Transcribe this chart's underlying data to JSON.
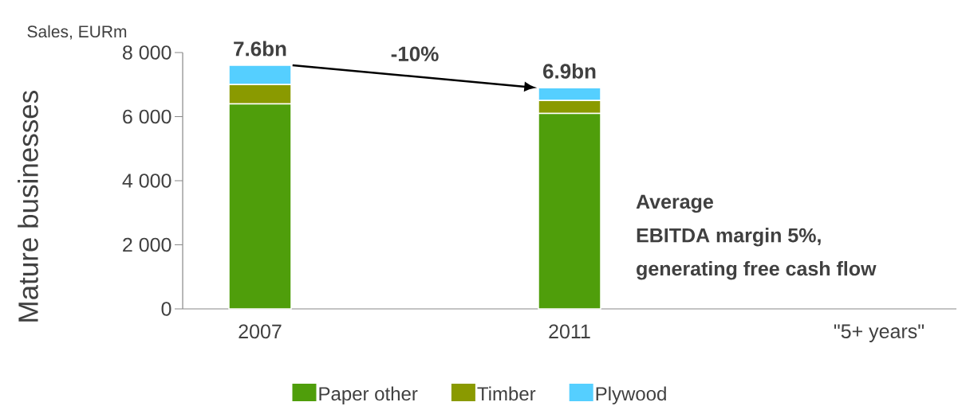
{
  "chart_data": {
    "type": "bar",
    "stacked": true,
    "title": "Mature businesses",
    "ylabel": "Sales, EURm",
    "categories": [
      "2007",
      null,
      "2011",
      null,
      "\"5+ years\""
    ],
    "series": [
      {
        "name": "Paper other",
        "color": "#4f9e0b",
        "values": [
          6400,
          null,
          6100,
          null,
          null
        ]
      },
      {
        "name": "Timber",
        "color": "#8a9a00",
        "values": [
          600,
          null,
          400,
          null,
          null
        ]
      },
      {
        "name": "Plywood",
        "color": "#55cfff",
        "values": [
          600,
          null,
          400,
          null,
          null
        ]
      }
    ],
    "totals": [
      "7.6bn",
      null,
      "6.9bn",
      null,
      null
    ],
    "ylim": [
      0,
      8000
    ],
    "yticks": [
      0,
      {
        "value": 2000,
        "label": "2 000"
      },
      {
        "value": 4000,
        "label": "4 000"
      },
      {
        "value": 6000,
        "label": "6 000"
      },
      {
        "value": 8000,
        "label": "8 000"
      }
    ],
    "annotations": [
      "-10%",
      "Average",
      "EBITDA margin 5%,",
      "generating free cash flow"
    ],
    "legend": "bottom",
    "grid": false
  }
}
